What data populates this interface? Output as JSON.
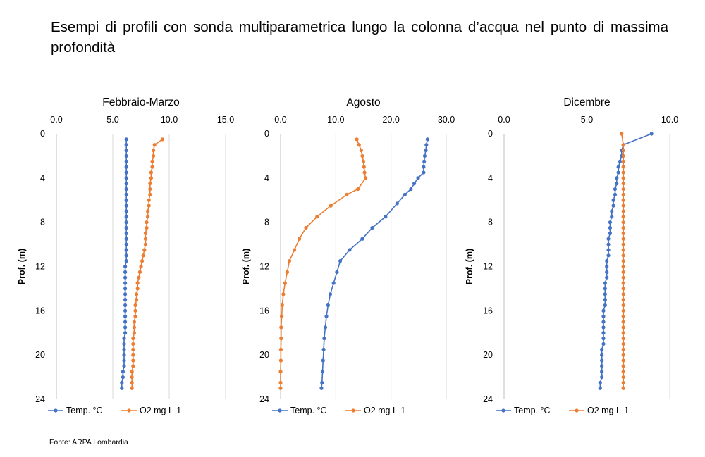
{
  "heading": "Esempi di profili con sonda multiparametrica lungo la colonna d’acqua nel punto di massima profondità",
  "source": "Fonte: ARPA Lombardia",
  "colors": {
    "temp": "#4472C4",
    "o2": "#ED7D31",
    "axis": "#bfbfbf",
    "grid": "#d9d9d9"
  },
  "chart_data": [
    {
      "type": "line",
      "title": "Febbraio-Marzo",
      "xlabel": "",
      "ylabel": "Prof. (m)",
      "x_axis_position": "top",
      "y_inverted": true,
      "xlim": [
        0,
        15
      ],
      "x_ticks": [
        "0.0",
        "5.0",
        "10.0",
        "15.0"
      ],
      "ylim": [
        0,
        24
      ],
      "y_ticks": [
        "0",
        "4",
        "8",
        "12",
        "16",
        "20",
        "24"
      ],
      "grid": "vertical",
      "legend": "bottom",
      "series": [
        {
          "name": "Temp. °C",
          "points": [
            [
              6.2,
              0.5
            ],
            [
              6.2,
              1
            ],
            [
              6.2,
              1.5
            ],
            [
              6.2,
              2
            ],
            [
              6.2,
              2.5
            ],
            [
              6.2,
              3
            ],
            [
              6.2,
              3.5
            ],
            [
              6.2,
              4
            ],
            [
              6.2,
              4.5
            ],
            [
              6.2,
              5
            ],
            [
              6.2,
              5.5
            ],
            [
              6.2,
              6
            ],
            [
              6.2,
              6.5
            ],
            [
              6.2,
              7
            ],
            [
              6.2,
              7.5
            ],
            [
              6.2,
              8
            ],
            [
              6.2,
              8.5
            ],
            [
              6.2,
              9
            ],
            [
              6.2,
              9.5
            ],
            [
              6.2,
              10
            ],
            [
              6.2,
              10.5
            ],
            [
              6.2,
              11
            ],
            [
              6.2,
              11.5
            ],
            [
              6.1,
              12
            ],
            [
              6.1,
              12.5
            ],
            [
              6.1,
              13
            ],
            [
              6.1,
              13.5
            ],
            [
              6.1,
              14
            ],
            [
              6.1,
              14.5
            ],
            [
              6.1,
              15
            ],
            [
              6.1,
              15.5
            ],
            [
              6.1,
              16
            ],
            [
              6.1,
              16.5
            ],
            [
              6.1,
              17
            ],
            [
              6.1,
              17.5
            ],
            [
              6.1,
              18
            ],
            [
              6.0,
              18.5
            ],
            [
              6.0,
              19
            ],
            [
              6.0,
              19.5
            ],
            [
              6.0,
              20
            ],
            [
              6.0,
              20.5
            ],
            [
              6.0,
              21
            ],
            [
              5.9,
              21.5
            ],
            [
              5.9,
              22
            ],
            [
              5.8,
              22.5
            ],
            [
              5.8,
              23
            ]
          ]
        },
        {
          "name": "O2 mg L-1",
          "points": [
            [
              9.4,
              0.5
            ],
            [
              8.7,
              1
            ],
            [
              8.6,
              1.5
            ],
            [
              8.6,
              2
            ],
            [
              8.5,
              2.5
            ],
            [
              8.5,
              3
            ],
            [
              8.4,
              3.5
            ],
            [
              8.4,
              4
            ],
            [
              8.3,
              4.5
            ],
            [
              8.3,
              5
            ],
            [
              8.3,
              5.5
            ],
            [
              8.2,
              6
            ],
            [
              8.2,
              6.5
            ],
            [
              8.1,
              7
            ],
            [
              8.1,
              7.5
            ],
            [
              8.0,
              8
            ],
            [
              8.0,
              8.5
            ],
            [
              7.9,
              9
            ],
            [
              7.9,
              9.5
            ],
            [
              7.9,
              10
            ],
            [
              7.8,
              10.5
            ],
            [
              7.7,
              11
            ],
            [
              7.6,
              11.5
            ],
            [
              7.5,
              12
            ],
            [
              7.4,
              12.5
            ],
            [
              7.3,
              13
            ],
            [
              7.2,
              13.5
            ],
            [
              7.2,
              14
            ],
            [
              7.1,
              14.5
            ],
            [
              7.1,
              15
            ],
            [
              7.0,
              15.5
            ],
            [
              7.0,
              16
            ],
            [
              7.0,
              16.5
            ],
            [
              6.9,
              17
            ],
            [
              6.9,
              17.5
            ],
            [
              6.9,
              18
            ],
            [
              6.8,
              18.5
            ],
            [
              6.8,
              19
            ],
            [
              6.8,
              19.5
            ],
            [
              6.8,
              20
            ],
            [
              6.8,
              20.5
            ],
            [
              6.8,
              21
            ],
            [
              6.7,
              21.5
            ],
            [
              6.7,
              22
            ],
            [
              6.7,
              22.5
            ],
            [
              6.7,
              23
            ]
          ]
        }
      ]
    },
    {
      "type": "line",
      "title": "Agosto",
      "xlabel": "",
      "ylabel": "Prof. (m)",
      "x_axis_position": "top",
      "y_inverted": true,
      "xlim": [
        0,
        30
      ],
      "x_ticks": [
        "0.0",
        "10.0",
        "20.0",
        "30.0"
      ],
      "ylim": [
        0,
        24
      ],
      "y_ticks": [
        "0",
        "4",
        "8",
        "12",
        "16",
        "20",
        "24"
      ],
      "grid": "vertical",
      "legend": "bottom",
      "series": [
        {
          "name": "Temp. °C",
          "points": [
            [
              26.6,
              0.5
            ],
            [
              26.4,
              1
            ],
            [
              26.3,
              1.5
            ],
            [
              26.1,
              2
            ],
            [
              26.0,
              2.5
            ],
            [
              25.9,
              3
            ],
            [
              25.9,
              3.5
            ],
            [
              24.9,
              4
            ],
            [
              24.2,
              4.5
            ],
            [
              23.6,
              5
            ],
            [
              22.5,
              5.5
            ],
            [
              21.1,
              6.3
            ],
            [
              19.0,
              7.5
            ],
            [
              16.6,
              8.5
            ],
            [
              14.8,
              9.5
            ],
            [
              12.5,
              10.5
            ],
            [
              10.8,
              11.5
            ],
            [
              10.2,
              12.5
            ],
            [
              9.6,
              13.5
            ],
            [
              9.0,
              14.5
            ],
            [
              8.6,
              15.5
            ],
            [
              8.3,
              16.5
            ],
            [
              8.1,
              17.5
            ],
            [
              7.9,
              18.5
            ],
            [
              7.8,
              19.5
            ],
            [
              7.7,
              20.5
            ],
            [
              7.6,
              21.5
            ],
            [
              7.5,
              22.5
            ],
            [
              7.4,
              23
            ]
          ]
        },
        {
          "name": "O2 mg L-1",
          "points": [
            [
              13.8,
              0.5
            ],
            [
              14.2,
              1
            ],
            [
              14.6,
              1.5
            ],
            [
              14.8,
              2
            ],
            [
              15.0,
              2.5
            ],
            [
              15.1,
              3
            ],
            [
              15.2,
              3.5
            ],
            [
              15.4,
              4
            ],
            [
              14.0,
              5
            ],
            [
              12.0,
              5.5
            ],
            [
              9.1,
              6.5
            ],
            [
              6.6,
              7.5
            ],
            [
              4.6,
              8.5
            ],
            [
              3.4,
              9.5
            ],
            [
              2.5,
              10.5
            ],
            [
              1.6,
              11.5
            ],
            [
              1.2,
              12.5
            ],
            [
              0.8,
              13.5
            ],
            [
              0.5,
              14.5
            ],
            [
              0.3,
              15.5
            ],
            [
              0.2,
              16.5
            ],
            [
              0.1,
              17.5
            ],
            [
              0.1,
              18.5
            ],
            [
              0.05,
              19.5
            ],
            [
              0.05,
              20.5
            ],
            [
              0.0,
              21.5
            ],
            [
              0.0,
              22.5
            ],
            [
              0.0,
              23
            ]
          ]
        }
      ]
    },
    {
      "type": "line",
      "title": "Dicembre",
      "xlabel": "",
      "ylabel": "Prof. (m)",
      "x_axis_position": "top",
      "y_inverted": true,
      "xlim": [
        0,
        10
      ],
      "x_ticks": [
        "0.0",
        "5.0",
        "10.0"
      ],
      "ylim": [
        0,
        24
      ],
      "y_ticks": [
        "0",
        "4",
        "8",
        "12",
        "16",
        "20",
        "24"
      ],
      "grid": "vertical",
      "legend": "bottom",
      "series": [
        {
          "name": "Temp. °C",
          "points": [
            [
              8.9,
              0
            ],
            [
              7.2,
              1
            ],
            [
              7.1,
              1.5
            ],
            [
              7.1,
              2
            ],
            [
              7.0,
              2.5
            ],
            [
              6.9,
              3
            ],
            [
              6.9,
              3.5
            ],
            [
              6.8,
              4
            ],
            [
              6.8,
              4.5
            ],
            [
              6.7,
              5
            ],
            [
              6.7,
              5.5
            ],
            [
              6.6,
              6
            ],
            [
              6.6,
              6.5
            ],
            [
              6.5,
              7
            ],
            [
              6.5,
              7.5
            ],
            [
              6.4,
              8
            ],
            [
              6.4,
              8.5
            ],
            [
              6.4,
              9
            ],
            [
              6.3,
              9.5
            ],
            [
              6.3,
              10
            ],
            [
              6.3,
              10.5
            ],
            [
              6.3,
              11
            ],
            [
              6.2,
              11.5
            ],
            [
              6.2,
              12
            ],
            [
              6.2,
              12.5
            ],
            [
              6.2,
              13
            ],
            [
              6.1,
              13.5
            ],
            [
              6.1,
              14
            ],
            [
              6.1,
              14.5
            ],
            [
              6.1,
              15
            ],
            [
              6.1,
              15.5
            ],
            [
              6.0,
              16
            ],
            [
              6.0,
              16.5
            ],
            [
              6.0,
              17
            ],
            [
              6.0,
              17.5
            ],
            [
              6.0,
              18
            ],
            [
              6.0,
              18.5
            ],
            [
              6.0,
              19
            ],
            [
              5.9,
              19.5
            ],
            [
              5.9,
              20
            ],
            [
              5.9,
              20.5
            ],
            [
              5.9,
              21
            ],
            [
              5.9,
              21.5
            ],
            [
              5.9,
              22
            ],
            [
              5.8,
              22.5
            ],
            [
              5.8,
              23
            ]
          ]
        },
        {
          "name": "O2 mg L-1",
          "points": [
            [
              7.1,
              0
            ],
            [
              7.2,
              1
            ],
            [
              7.2,
              1.5
            ],
            [
              7.2,
              2
            ],
            [
              7.2,
              2.5
            ],
            [
              7.2,
              3
            ],
            [
              7.2,
              3.5
            ],
            [
              7.2,
              4
            ],
            [
              7.2,
              4.5
            ],
            [
              7.2,
              5
            ],
            [
              7.2,
              5.5
            ],
            [
              7.2,
              6
            ],
            [
              7.2,
              6.5
            ],
            [
              7.2,
              7
            ],
            [
              7.2,
              7.5
            ],
            [
              7.2,
              8
            ],
            [
              7.2,
              8.5
            ],
            [
              7.2,
              9
            ],
            [
              7.2,
              9.5
            ],
            [
              7.2,
              10
            ],
            [
              7.2,
              10.5
            ],
            [
              7.2,
              11
            ],
            [
              7.2,
              11.5
            ],
            [
              7.2,
              12
            ],
            [
              7.2,
              12.5
            ],
            [
              7.2,
              13
            ],
            [
              7.2,
              13.5
            ],
            [
              7.2,
              14
            ],
            [
              7.2,
              14.5
            ],
            [
              7.2,
              15
            ],
            [
              7.2,
              15.5
            ],
            [
              7.2,
              16
            ],
            [
              7.2,
              16.5
            ],
            [
              7.2,
              17
            ],
            [
              7.2,
              17.5
            ],
            [
              7.2,
              18
            ],
            [
              7.2,
              18.5
            ],
            [
              7.2,
              19
            ],
            [
              7.2,
              19.5
            ],
            [
              7.2,
              20
            ],
            [
              7.2,
              20.5
            ],
            [
              7.2,
              21
            ],
            [
              7.2,
              21.5
            ],
            [
              7.2,
              22
            ],
            [
              7.2,
              22.5
            ],
            [
              7.2,
              23
            ]
          ]
        }
      ]
    }
  ]
}
